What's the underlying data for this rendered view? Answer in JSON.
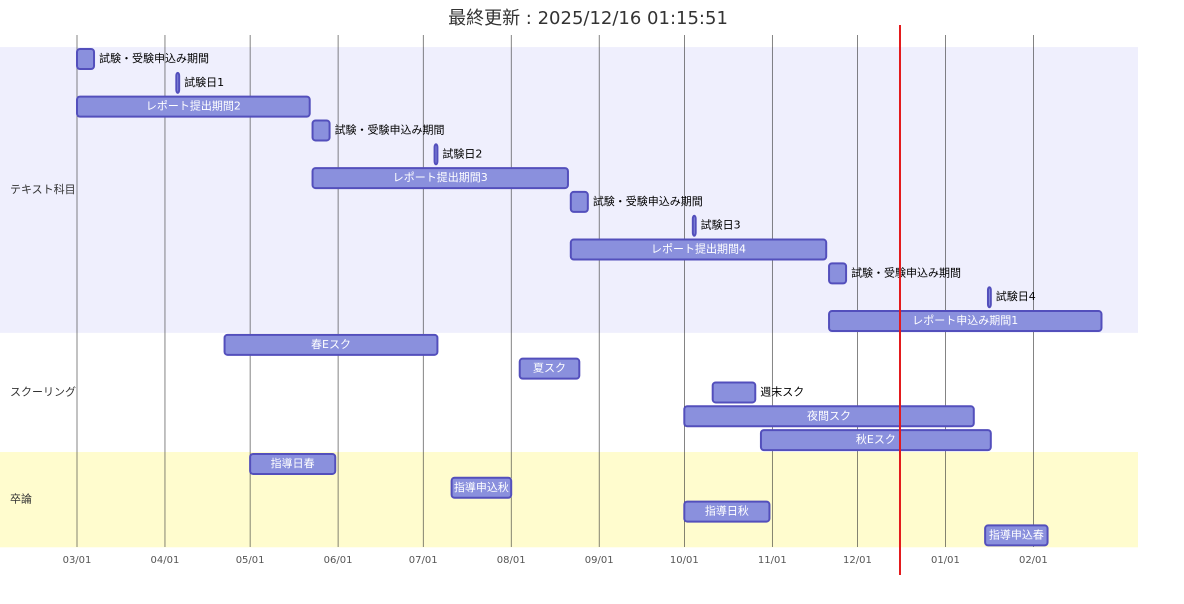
{
  "chart_data": {
    "type": "gantt",
    "title": "最終更新 : 2025/12/16 01:15:51",
    "xlim": [
      "03/01",
      "02/28"
    ],
    "xticks": [
      "03/01",
      "04/01",
      "05/01",
      "06/01",
      "07/01",
      "08/01",
      "09/01",
      "10/01",
      "11/01",
      "12/01",
      "01/01",
      "02/01"
    ],
    "today": "12/16",
    "today_color": "#e31a1c",
    "bar_color": "#8a90dd",
    "bar_border": "#534fbc",
    "sections": [
      {
        "name": "テキスト科目",
        "color": "#efeffd",
        "tasks": [
          {
            "name": "試験・受験申込み期間",
            "start": "03/01",
            "end": "03/07"
          },
          {
            "name": "試験日1",
            "start": "04/05",
            "end": "04/06"
          },
          {
            "name": "レポート提出期間2",
            "start": "03/01",
            "end": "05/22"
          },
          {
            "name": "試験・受験申込み期間",
            "start": "05/23",
            "end": "05/29"
          },
          {
            "name": "試験日2",
            "start": "07/05",
            "end": "07/06"
          },
          {
            "name": "レポート提出期間3",
            "start": "05/23",
            "end": "08/21"
          },
          {
            "name": "試験・受験申込み期間",
            "start": "08/22",
            "end": "08/28"
          },
          {
            "name": "試験日3",
            "start": "10/04",
            "end": "10/05"
          },
          {
            "name": "レポート提出期間4",
            "start": "08/22",
            "end": "11/20"
          },
          {
            "name": "試験・受験申込み期間",
            "start": "11/21",
            "end": "11/27"
          },
          {
            "name": "試験日4",
            "start": "01/16",
            "end": "01/17"
          },
          {
            "name": "レポート申込み期間1",
            "start": "11/21",
            "end": "02/25"
          }
        ]
      },
      {
        "name": "スクーリング",
        "color": "#ffffff",
        "tasks": [
          {
            "name": "春Eスク",
            "start": "04/22",
            "end": "07/06"
          },
          {
            "name": "夏スク",
            "start": "08/04",
            "end": "08/25"
          },
          {
            "name": "週末スク",
            "start": "10/11",
            "end": "10/26"
          },
          {
            "name": "夜間スク",
            "start": "10/01",
            "end": "01/11"
          },
          {
            "name": "秋Eスク",
            "start": "10/28",
            "end": "01/17"
          }
        ]
      },
      {
        "name": "卒論",
        "color": "#fffcce",
        "tasks": [
          {
            "name": "指導日春",
            "start": "05/01",
            "end": "05/31"
          },
          {
            "name": "指導申込秋",
            "start": "07/11",
            "end": "08/01"
          },
          {
            "name": "指導日秋",
            "start": "10/01",
            "end": "10/31"
          },
          {
            "name": "指導申込春",
            "start": "01/15",
            "end": "02/06"
          }
        ]
      }
    ]
  }
}
